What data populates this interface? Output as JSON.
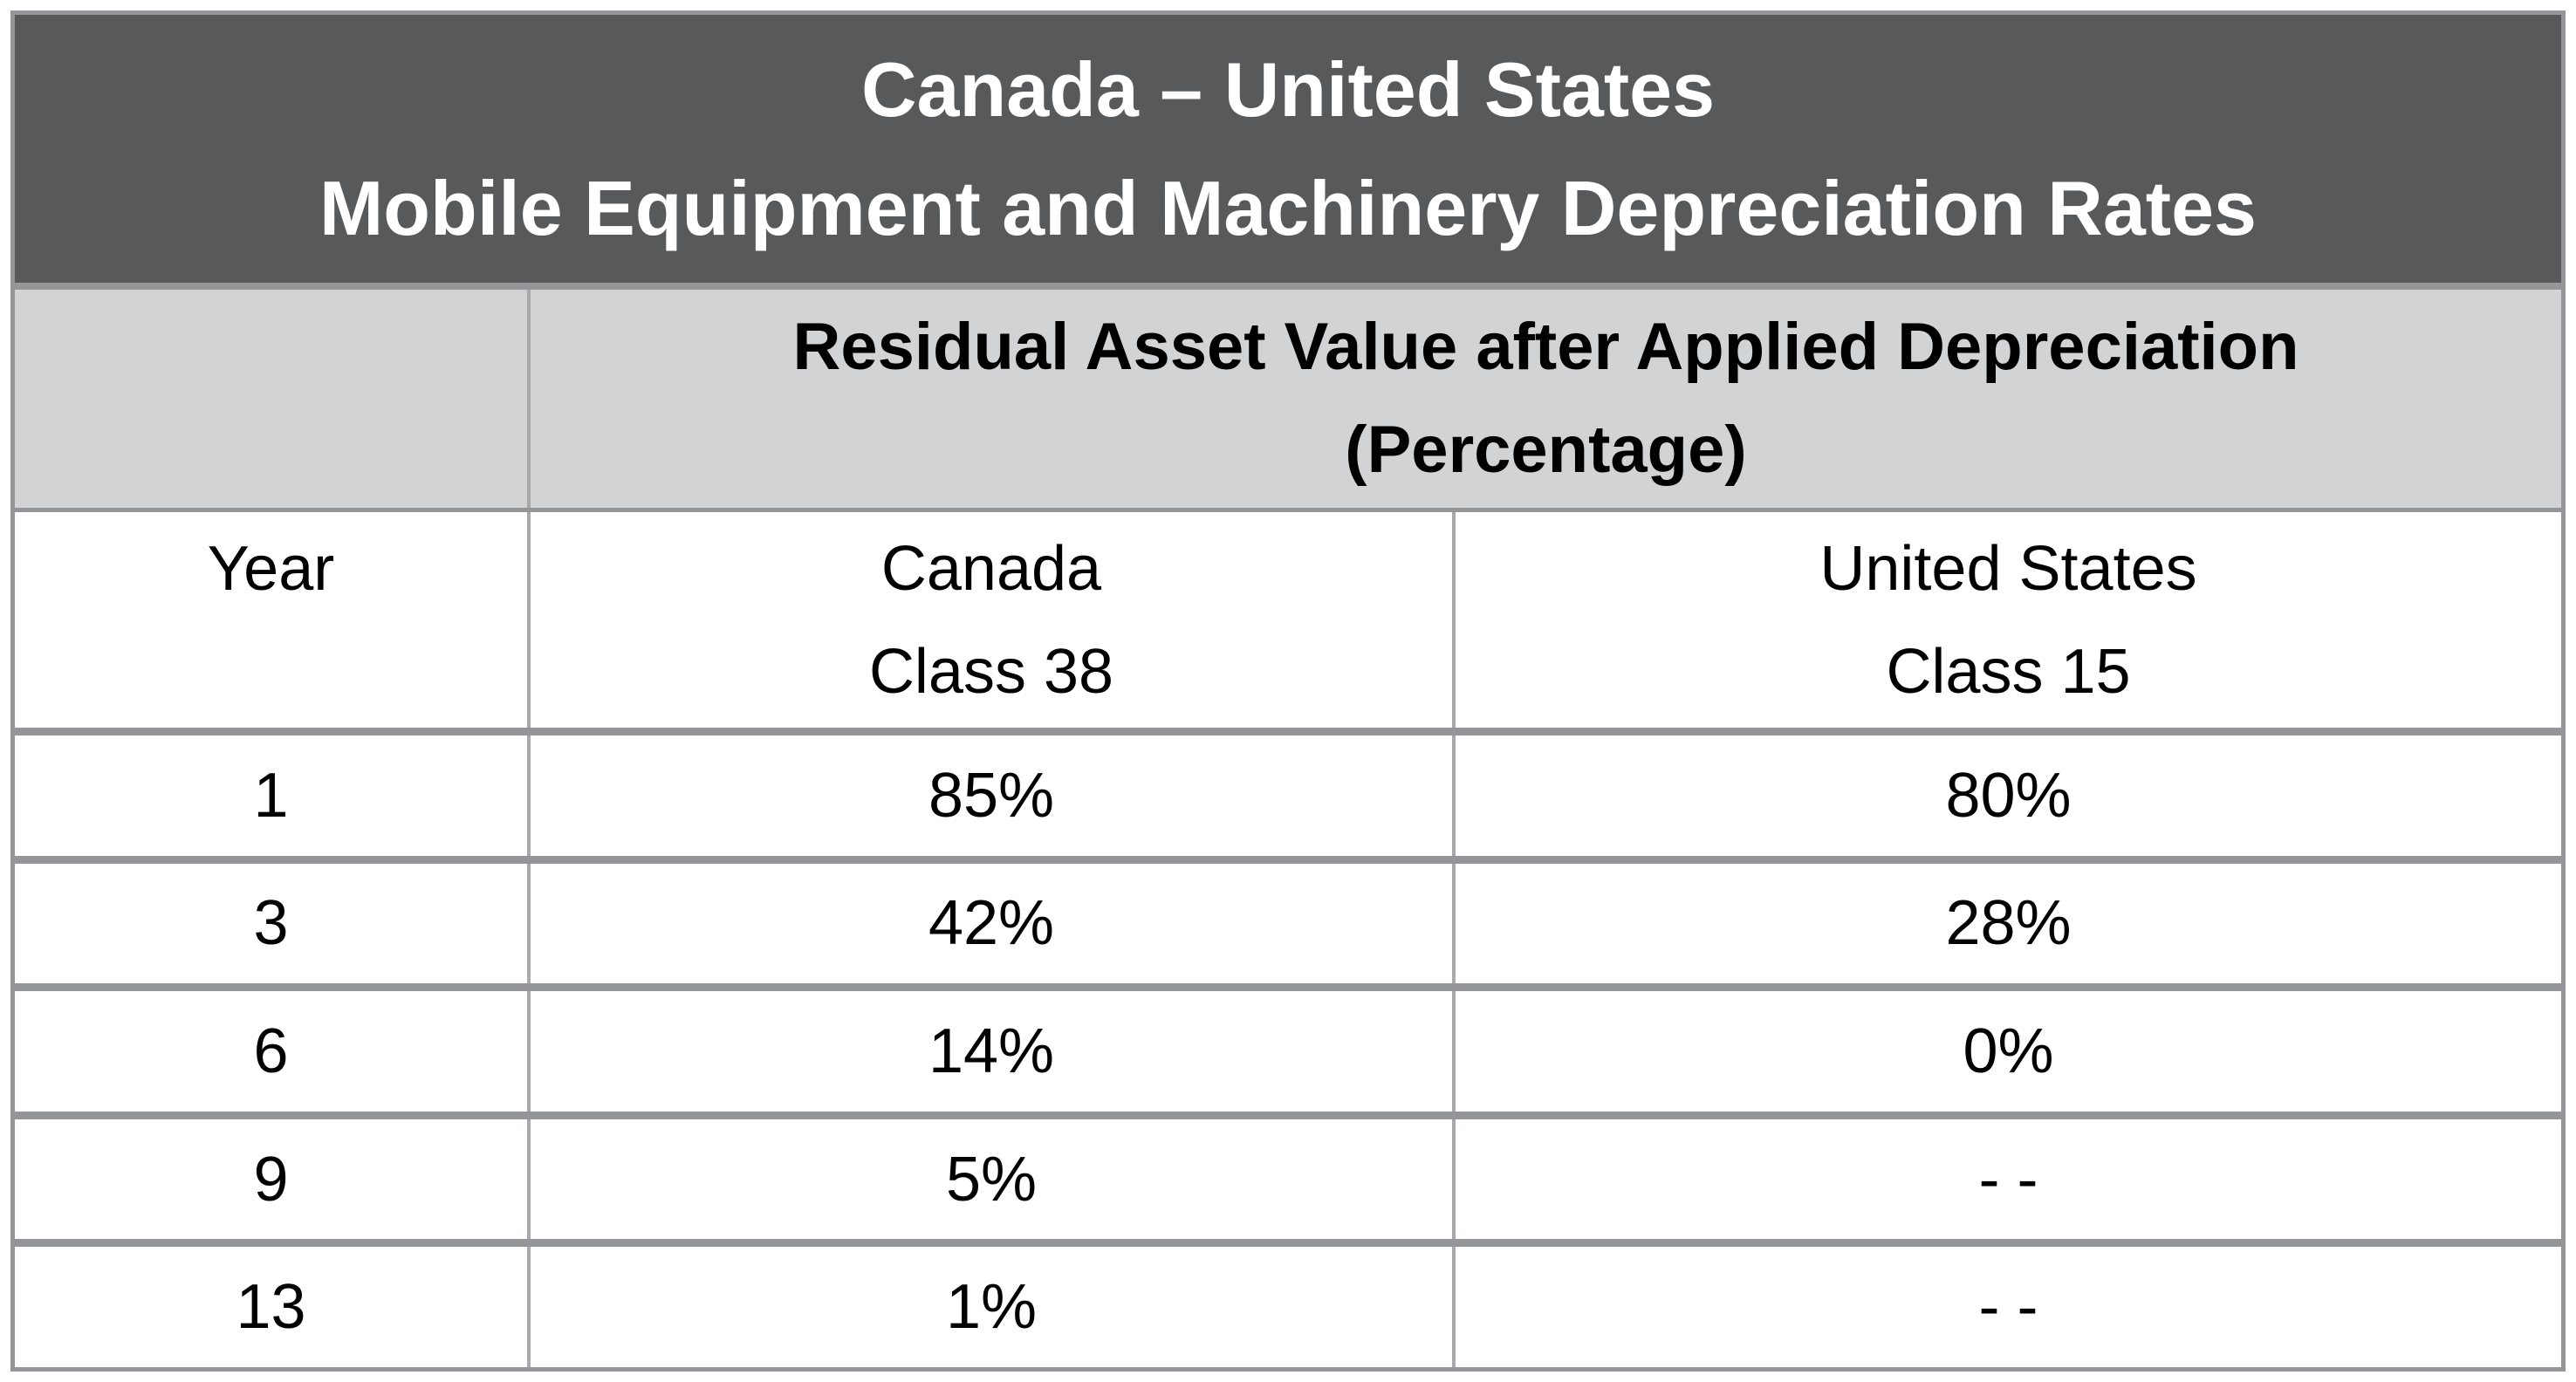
{
  "title": {
    "line1": "Canada – United States",
    "line2": "Mobile Equipment and Machinery Depreciation Rates"
  },
  "subtitle": {
    "line1": "Residual Asset Value after Applied Depreciation",
    "line2": "(Percentage)"
  },
  "header": {
    "year": "Year",
    "canada_line1": "Canada",
    "canada_line2": "Class 38",
    "us_line1": "United States",
    "us_line2": "Class 15"
  },
  "rows": [
    {
      "year": "1",
      "canada": "85%",
      "us": "80%"
    },
    {
      "year": "3",
      "canada": "42%",
      "us": "28%"
    },
    {
      "year": "6",
      "canada": "14%",
      "us": "0%"
    },
    {
      "year": "9",
      "canada": "5%",
      "us": "- -"
    },
    {
      "year": "13",
      "canada": "1%",
      "us": "- -"
    }
  ],
  "colors": {
    "title_bg": "#58595B",
    "title_text": "#FFFFFF",
    "subtitle_bg": "#D1D3D4",
    "grid_rule": "#939598",
    "column_line": "#A7A9AC",
    "body_text": "#000000",
    "page_bg": "#FFFFFF"
  },
  "chart_data": {
    "type": "table",
    "title": "Canada – United States Mobile Equipment and Machinery Depreciation Rates",
    "subtitle": "Residual Asset Value after Applied Depreciation (Percentage)",
    "columns": [
      "Year",
      "Canada Class 38",
      "United States Class 15"
    ],
    "rows": [
      [
        "1",
        "85%",
        "80%"
      ],
      [
        "3",
        "42%",
        "28%"
      ],
      [
        "6",
        "14%",
        "0%"
      ],
      [
        "9",
        "5%",
        "- -"
      ],
      [
        "13",
        "1%",
        "- -"
      ]
    ]
  }
}
